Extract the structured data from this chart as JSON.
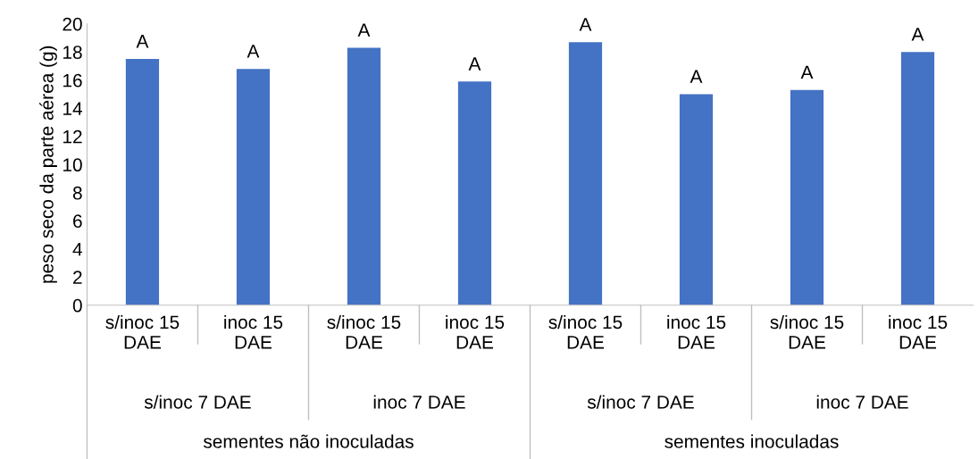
{
  "chart_data": {
    "type": "bar",
    "ylabel": "peso seco da parte aérea (g)",
    "categories": [
      "s/inoc 15\nDAE",
      "inoc 15\nDAE",
      "s/inoc 15\nDAE",
      "inoc 15\nDAE",
      "s/inoc 15\nDAE",
      "inoc 15\nDAE",
      "s/inoc 15\nDAE",
      "inoc 15\nDAE"
    ],
    "values": [
      17.5,
      16.8,
      18.3,
      15.9,
      18.7,
      15.0,
      15.3,
      18.0
    ],
    "value_labels": [
      "A",
      "A",
      "A",
      "A",
      "A",
      "A",
      "A",
      "A"
    ],
    "color": "#4472c4",
    "ylim": [
      0,
      20
    ],
    "yticks": [
      0,
      2,
      4,
      6,
      8,
      10,
      12,
      14,
      16,
      18,
      20
    ],
    "grid": false,
    "annotations": [
      "s/inoc 7 DAE",
      "inoc 7 DAE",
      "s/inoc 7 DAE",
      "inoc 7 DAE",
      "sementes não inoculadas",
      "sementes inoculadas"
    ]
  }
}
